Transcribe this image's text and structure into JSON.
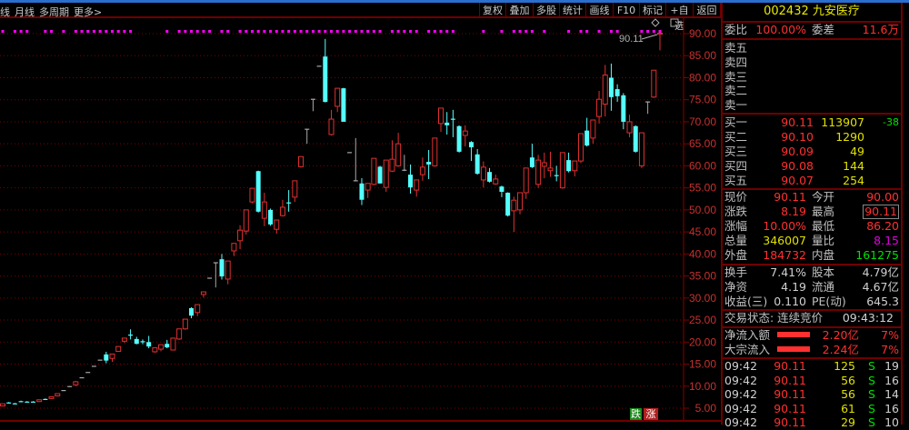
{
  "toolbar": {
    "left_tabs": [
      "线",
      "月线",
      "多周期",
      "更多>"
    ],
    "right_buttons": [
      "复权",
      "叠加",
      "多股",
      "统计",
      "画线",
      "F10",
      "标记",
      "+自选",
      "返回"
    ]
  },
  "stock": {
    "code_name": "002432 九安医疗"
  },
  "weibi": {
    "label": "委比",
    "value": "100.00%",
    "label2": "委差",
    "value2": "11.6万"
  },
  "sell_levels": [
    {
      "label": "卖五"
    },
    {
      "label": "卖四"
    },
    {
      "label": "卖三"
    },
    {
      "label": "卖二"
    },
    {
      "label": "卖一"
    }
  ],
  "buy_levels": [
    {
      "label": "买一",
      "price": "90.11",
      "volume": "113907",
      "change": "-38"
    },
    {
      "label": "买二",
      "price": "90.10",
      "volume": "1290",
      "change": ""
    },
    {
      "label": "买三",
      "price": "90.09",
      "volume": "49",
      "change": ""
    },
    {
      "label": "买四",
      "price": "90.08",
      "volume": "144",
      "change": ""
    },
    {
      "label": "买五",
      "price": "90.07",
      "volume": "254",
      "change": ""
    }
  ],
  "quote": [
    {
      "l1": "现价",
      "v1": "90.11",
      "l2": "今开",
      "v2": "90.00"
    },
    {
      "l1": "涨跌",
      "v1": "8.19",
      "l2": "最高",
      "v2": "90.11"
    },
    {
      "l1": "涨幅",
      "v1": "10.00%",
      "l2": "最低",
      "v2": "86.20"
    },
    {
      "l1": "总量",
      "v1": "346007",
      "l2": "量比",
      "v2": "8.15"
    },
    {
      "l1": "外盘",
      "v1": "184732",
      "l2": "内盘",
      "v2": "161275"
    }
  ],
  "fundamentals": [
    {
      "l1": "换手",
      "v1": "7.41%",
      "l2": "股本",
      "v2": "4.79亿"
    },
    {
      "l1": "净资",
      "v1": "4.19",
      "l2": "流通",
      "v2": "4.67亿"
    },
    {
      "l1": "收益(三)",
      "v1": "0.110",
      "l2": "PE(动)",
      "v2": "645.3"
    }
  ],
  "trade_status": {
    "label": "交易状态: 连续竞价",
    "time": "09:43:12"
  },
  "flows": [
    {
      "label": "净流入额",
      "value": "2.20亿",
      "pct": "7%"
    },
    {
      "label": "大宗流入",
      "value": "2.24亿",
      "pct": "7%"
    }
  ],
  "ticks": [
    {
      "time": "09:42",
      "price": "90.11",
      "volume": "125",
      "side": "S",
      "count": "19"
    },
    {
      "time": "09:42",
      "price": "90.11",
      "volume": "56",
      "side": "S",
      "count": "16"
    },
    {
      "time": "09:42",
      "price": "90.11",
      "volume": "56",
      "side": "S",
      "count": "14"
    },
    {
      "time": "09:42",
      "price": "90.11",
      "volume": "61",
      "side": "S",
      "count": "16"
    },
    {
      "time": "09:42",
      "price": "90.11",
      "volume": "29",
      "side": "S",
      "count": "10"
    }
  ],
  "badges": {
    "down": "跌",
    "up": "涨"
  },
  "colors": {
    "up": "#e03030",
    "down": "#54ffff",
    "flat": "#a8a8a8",
    "grid": "#800000",
    "signal": "#ff00ff",
    "axis_text": "#c83030"
  },
  "chart_data": {
    "type": "candlestick",
    "y_ticks": [
      "90.00",
      "85.00",
      "80.00",
      "75.00",
      "70.00",
      "65.00",
      "60.00",
      "55.00",
      "50.00",
      "45.00",
      "40.00",
      "35.00",
      "30.00",
      "25.00",
      "20.00",
      "15.00",
      "10.00",
      "5.00"
    ],
    "ylim": [
      5,
      90
    ],
    "last_price_label": "90.11",
    "signal_indices": [
      0,
      2,
      3,
      4,
      7,
      8,
      10,
      12,
      13,
      14,
      15,
      16,
      17,
      18,
      19,
      20,
      21,
      27,
      29,
      30,
      31,
      32,
      33,
      34,
      36,
      37,
      39,
      40,
      41,
      42,
      43,
      44,
      45,
      46,
      47,
      48,
      49,
      50,
      51,
      52,
      53,
      54,
      55,
      56,
      57,
      58,
      59,
      60,
      61,
      62,
      64,
      65,
      66,
      67,
      68,
      70,
      71,
      72,
      73,
      74,
      79,
      82,
      84,
      85,
      86,
      87,
      89,
      93,
      95,
      96,
      98,
      100,
      101,
      105,
      106,
      107,
      108
    ],
    "candles": [
      [
        5.5,
        6.0,
        5.4,
        6.0
      ],
      [
        6.3,
        6.4,
        6.1,
        6.2
      ],
      [
        6.1,
        6.2,
        5.9,
        6.0
      ],
      [
        6.6,
        6.7,
        6.4,
        6.5
      ],
      [
        6.5,
        6.6,
        6.3,
        6.4
      ],
      [
        6.5,
        6.6,
        6.3,
        6.4
      ],
      [
        6.5,
        6.9,
        6.4,
        6.9
      ],
      [
        7.1,
        7.2,
        6.9,
        7.0
      ],
      [
        7.2,
        7.6,
        7.1,
        7.6
      ],
      [
        7.8,
        8.3,
        7.7,
        8.3
      ],
      [
        9.0,
        9.0,
        9.0,
        9.0
      ],
      [
        9.9,
        9.9,
        9.9,
        9.9
      ],
      [
        10.3,
        11.2,
        10.0,
        11.0
      ],
      [
        11.9,
        11.9,
        11.9,
        11.9
      ],
      [
        13.1,
        13.1,
        13.1,
        13.1
      ],
      [
        14.5,
        14.5,
        14.5,
        14.5
      ],
      [
        15.9,
        15.9,
        15.9,
        15.9
      ],
      [
        17.2,
        17.8,
        15.2,
        15.8
      ],
      [
        16.3,
        17.3,
        15.5,
        17.3
      ],
      [
        17.9,
        19.0,
        17.8,
        19.0
      ],
      [
        20.2,
        20.9,
        19.8,
        20.9
      ],
      [
        21.7,
        22.9,
        20.6,
        21.5
      ],
      [
        20.7,
        21.2,
        19.5,
        19.6
      ],
      [
        20.2,
        20.6,
        19.5,
        20.1
      ],
      [
        20.0,
        21.4,
        18.6,
        19.0
      ],
      [
        17.8,
        18.7,
        17.6,
        18.7
      ],
      [
        18.4,
        19.4,
        17.9,
        19.4
      ],
      [
        19.6,
        20.5,
        18.6,
        18.8
      ],
      [
        18.2,
        20.9,
        18.1,
        20.9
      ],
      [
        20.7,
        23.0,
        20.5,
        23.0
      ],
      [
        23.0,
        25.2,
        22.8,
        25.2
      ],
      [
        27.7,
        27.9,
        25.4,
        26.0
      ],
      [
        26.7,
        28.5,
        25.9,
        28.5
      ],
      [
        30.8,
        31.4,
        30.1,
        31.4
      ],
      [
        34.5,
        34.5,
        34.5,
        34.5
      ],
      [
        38.0,
        38.0,
        32.4,
        38.0
      ],
      [
        38.8,
        40.0,
        34.2,
        34.9
      ],
      [
        34.3,
        38.4,
        33.1,
        38.4
      ],
      [
        40.7,
        42.4,
        39.5,
        42.4
      ],
      [
        43.0,
        46.5,
        41.1,
        45.4
      ],
      [
        45.2,
        50.0,
        44.4,
        50.0
      ],
      [
        51.8,
        54.9,
        51.5,
        54.9
      ],
      [
        58.8,
        58.9,
        49.4,
        49.6
      ],
      [
        48.1,
        53.9,
        46.3,
        51.8
      ],
      [
        50.0,
        50.3,
        46.4,
        46.7
      ],
      [
        45.6,
        47.7,
        44.6,
        47.7
      ],
      [
        48.7,
        52.3,
        48.5,
        50.6
      ],
      [
        51.7,
        54.5,
        49.6,
        51.5
      ],
      [
        52.9,
        56.6,
        51.8,
        56.6
      ],
      [
        59.8,
        62.1,
        59.6,
        62.1
      ],
      [
        68.3,
        68.3,
        65.0,
        68.3
      ],
      [
        75.1,
        75.1,
        72.4,
        75.1
      ],
      [
        82.6,
        82.6,
        82.6,
        82.6
      ],
      [
        84.8,
        88.8,
        74.4,
        74.5
      ],
      [
        67.1,
        72.7,
        66.9,
        70.6
      ],
      [
        73.5,
        77.6,
        72.2,
        77.6
      ],
      [
        77.6,
        77.7,
        70.0,
        70.0
      ],
      [
        63.0,
        63.0,
        63.0,
        63.0
      ],
      [
        56.6,
        66.3,
        56.6,
        56.6
      ],
      [
        56.0,
        57.2,
        51.1,
        52.3
      ],
      [
        54.5,
        56.0,
        52.7,
        56.0
      ],
      [
        55.8,
        61.7,
        55.6,
        61.7
      ],
      [
        59.8,
        60.0,
        56.0,
        56.0
      ],
      [
        55.1,
        61.3,
        54.1,
        61.3
      ],
      [
        58.8,
        65.8,
        58.6,
        61.5
      ],
      [
        60.0,
        67.5,
        59.8,
        65.0
      ],
      [
        59.0,
        62.5,
        58.8,
        59.0
      ],
      [
        58.0,
        60.3,
        53.7,
        55.1
      ],
      [
        54.5,
        56.8,
        53.0,
        56.8
      ],
      [
        58.0,
        61.9,
        56.6,
        59.7
      ],
      [
        60.9,
        63.6,
        57.0,
        60.3
      ],
      [
        60.0,
        66.3,
        59.8,
        66.3
      ],
      [
        69.6,
        73.1,
        67.7,
        73.1
      ],
      [
        69.8,
        72.2,
        67.1,
        69.2
      ],
      [
        70.7,
        72.7,
        66.5,
        70.6
      ],
      [
        69.0,
        69.2,
        63.0,
        63.2
      ],
      [
        66.9,
        69.2,
        64.4,
        67.9
      ],
      [
        65.4,
        65.6,
        61.1,
        64.2
      ],
      [
        62.6,
        63.8,
        58.0,
        58.2
      ],
      [
        56.8,
        61.0,
        55.1,
        59.7
      ],
      [
        58.6,
        59.5,
        56.2,
        56.4
      ],
      [
        55.9,
        58.0,
        55.7,
        57.0
      ],
      [
        55.3,
        55.5,
        52.9,
        54.1
      ],
      [
        53.9,
        54.0,
        48.5,
        48.7
      ],
      [
        49.8,
        53.0,
        45.0,
        52.2
      ],
      [
        50.0,
        53.9,
        49.0,
        53.9
      ],
      [
        53.9,
        59.5,
        52.5,
        59.5
      ],
      [
        61.9,
        65.0,
        59.5,
        59.7
      ],
      [
        55.8,
        62.5,
        55.0,
        61.3
      ],
      [
        59.9,
        63.0,
        57.2,
        60.7
      ],
      [
        58.9,
        63.2,
        57.5,
        59.5
      ],
      [
        57.9,
        60.0,
        56.5,
        57.8
      ],
      [
        55.0,
        63.0,
        54.8,
        63.0
      ],
      [
        61.3,
        63.0,
        58.5,
        58.8
      ],
      [
        58.9,
        61.1,
        57.6,
        61.1
      ],
      [
        61.1,
        67.3,
        60.6,
        67.3
      ],
      [
        68.0,
        70.9,
        64.4,
        64.6
      ],
      [
        66.3,
        70.4,
        65.0,
        70.4
      ],
      [
        71.2,
        77.0,
        69.6,
        75.1
      ],
      [
        74.0,
        82.9,
        71.2,
        80.6
      ],
      [
        80.0,
        83.2,
        72.5,
        75.6
      ],
      [
        77.4,
        78.5,
        74.5,
        75.8
      ],
      [
        76.0,
        76.5,
        68.3,
        70.0
      ],
      [
        67.5,
        71.6,
        66.5,
        70.0
      ],
      [
        69.0,
        69.2,
        63.0,
        63.2
      ],
      [
        60.0,
        67.5,
        59.5,
        67.5
      ],
      [
        74.5,
        74.5,
        71.8,
        74.5
      ],
      [
        75.6,
        81.7,
        75.4,
        81.7
      ],
      [
        90.0,
        90.11,
        86.2,
        90.11
      ]
    ]
  }
}
